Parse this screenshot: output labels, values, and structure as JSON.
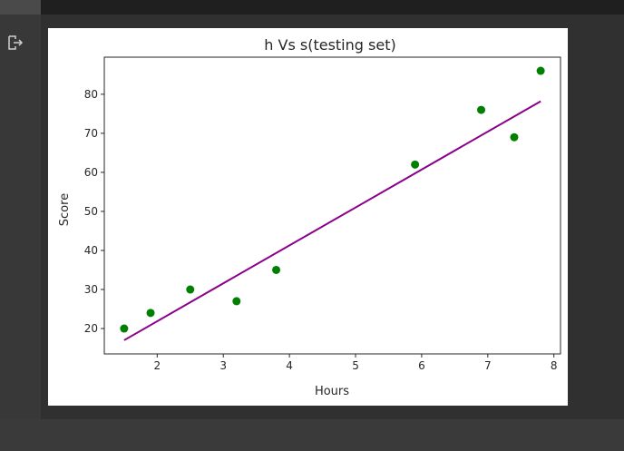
{
  "colors": {
    "page_bg": "#383838",
    "top_bar": "#1f1f1f",
    "figure_bg": "#ffffff",
    "point_color": "#008000",
    "line_color": "#8b008b"
  },
  "notebook": {
    "output_icon": "output-arrow-icon"
  },
  "chart_data": {
    "type": "scatter",
    "title": "h Vs s(testing set)",
    "xlabel": "Hours",
    "ylabel": "Score",
    "xlim": [
      1.2,
      8.1
    ],
    "ylim": [
      13.5,
      89.5
    ],
    "xticks": [
      2,
      3,
      4,
      5,
      6,
      7,
      8
    ],
    "yticks": [
      20,
      30,
      40,
      50,
      60,
      70,
      80
    ],
    "grid": false,
    "points": [
      {
        "x": 1.5,
        "y": 20
      },
      {
        "x": 1.9,
        "y": 24
      },
      {
        "x": 2.5,
        "y": 30
      },
      {
        "x": 3.2,
        "y": 27
      },
      {
        "x": 3.8,
        "y": 35
      },
      {
        "x": 5.9,
        "y": 62
      },
      {
        "x": 6.9,
        "y": 76
      },
      {
        "x": 7.4,
        "y": 69
      },
      {
        "x": 7.8,
        "y": 86
      }
    ],
    "regression_line": {
      "x": [
        1.5,
        7.8
      ],
      "y": [
        17.0,
        78.2
      ]
    }
  }
}
